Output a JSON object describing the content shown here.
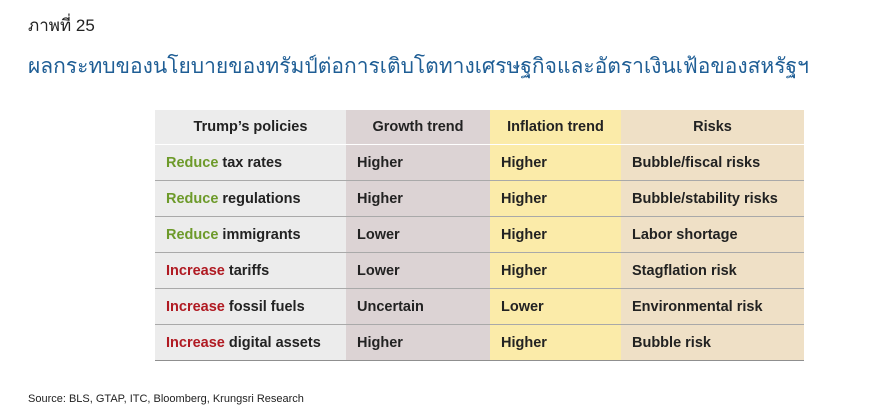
{
  "figure_label": "ภาพที่ 25",
  "title": "ผลกระทบของนโยบายของทรัมป์ต่อการเติบโตทางเศรษฐกิจและอัตราเงินเฟ้อของสหรัฐฯ",
  "table": {
    "headers": [
      "Trump’s policies",
      "Growth trend",
      "Inflation trend",
      "Risks"
    ],
    "rows": [
      {
        "verb": "Reduce",
        "subject": " tax rates",
        "growth": "Higher",
        "inflation": "Higher",
        "risk": "Bubble/fiscal risks"
      },
      {
        "verb": "Reduce",
        "subject": " regulations",
        "growth": "Higher",
        "inflation": "Higher",
        "risk": "Bubble/stability risks"
      },
      {
        "verb": "Reduce",
        "subject": " immigrants",
        "growth": "Lower",
        "inflation": "Higher",
        "risk": "Labor shortage"
      },
      {
        "verb": "Increase",
        "subject": " tariffs",
        "growth": "Lower",
        "inflation": "Higher",
        "risk": "Stagflation risk"
      },
      {
        "verb": "Increase",
        "subject": " fossil fuels",
        "growth": "Uncertain",
        "inflation": "Lower",
        "risk": "Environmental risk"
      },
      {
        "verb": "Increase",
        "subject": " digital assets",
        "growth": "Higher",
        "inflation": "Higher",
        "risk": "Bubble risk"
      }
    ]
  },
  "colors": {
    "reduce": "#6d9a2a",
    "increase": "#b01a22",
    "title": "#1f5e95",
    "col_policies": "#ececec",
    "col_growth": "#dcd3d4",
    "col_inflation": "#fbeba9",
    "col_risks": "#efe0c6"
  },
  "source": "Source: BLS, GTAP, ITC, Bloomberg, Krungsri Research"
}
